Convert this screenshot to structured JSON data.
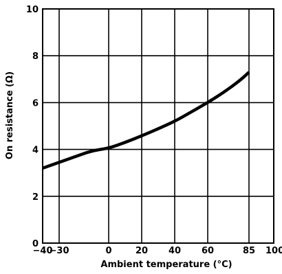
{
  "chart_data": {
    "type": "line",
    "title": "",
    "xlabel": "Ambient temperature (°C)",
    "ylabel": "On resistance (Ω)",
    "xlim": [
      -40,
      100
    ],
    "ylim": [
      0,
      10
    ],
    "grid": true,
    "x_ticks": [
      -40,
      -30,
      0,
      20,
      40,
      60,
      85,
      100
    ],
    "x_tick_labels": [
      "−40",
      "−30",
      "0",
      "20",
      "40",
      "60",
      "85",
      "100"
    ],
    "y_ticks": [
      0,
      2,
      4,
      6,
      8,
      10
    ],
    "y_tick_labels": [
      "0",
      "2",
      "4",
      "6",
      "8",
      "10"
    ],
    "series": [
      {
        "x": [
          -40,
          -30,
          -20,
          -10,
          0,
          10,
          20,
          30,
          40,
          50,
          60,
          70,
          80,
          85
        ],
        "y": [
          3.2,
          3.45,
          3.7,
          3.95,
          4.05,
          4.3,
          4.58,
          4.88,
          5.2,
          5.6,
          6.0,
          6.45,
          6.97,
          7.3
        ]
      }
    ]
  }
}
